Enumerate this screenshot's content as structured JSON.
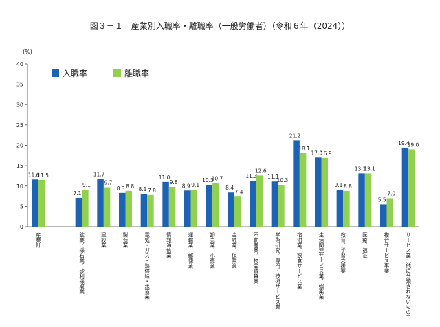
{
  "chart_data": {
    "type": "bar",
    "title": "図３－１　産業別入職率・離職率（一般労働者）（令和６年（2024））",
    "ylabel": "(%)",
    "categories": [
      "産業計",
      null,
      "鉱業，採石業，砂利採取業",
      "建設業",
      "製造業",
      "電気・ガス・熱供給・水道業",
      "情報通信業",
      "運輸業，郵便業",
      "卸売業，小売業",
      "金融業，保険業",
      "不動産業，物品賃貸業",
      "学術研究，専門・技術サービス業",
      "宿泊業，飲食サービス業",
      "生活関連サービス業，娯楽業",
      "教育，学習支援業",
      "医療，福祉",
      "複合サービス事業",
      "サービス業（他に分類されないもの）"
    ],
    "series": [
      {
        "name": "入職率",
        "color": "#1d63b5",
        "values": [
          11.6,
          null,
          7.1,
          11.7,
          8.3,
          8.1,
          11.0,
          8.9,
          10.3,
          8.4,
          11.3,
          11.1,
          21.2,
          17.0,
          9.1,
          13.1,
          5.5,
          19.4
        ],
        "value_labels": [
          "11.6",
          null,
          "7.1",
          "11.7",
          "8.3",
          "8.1",
          "11.0",
          "8.9",
          "10.3",
          "8.4",
          "11.3",
          "11.1",
          "21.2",
          "17.0",
          "9.1",
          "13.1",
          "5.5",
          "19.4"
        ]
      },
      {
        "name": "離職率",
        "color": "#92d050",
        "values": [
          11.5,
          null,
          9.1,
          9.7,
          8.8,
          7.8,
          9.8,
          9.1,
          10.7,
          7.4,
          12.6,
          10.3,
          18.1,
          16.9,
          8.8,
          13.1,
          7.0,
          19.0
        ],
        "value_labels": [
          "11.5",
          null,
          "9.1",
          "9.7",
          "8.8",
          "7.8",
          "9.8",
          "9.1",
          "10.7",
          "7.4",
          "12.6",
          "10.3",
          "18.1",
          "16.9",
          "8.8",
          "13.1",
          "7.0",
          "19.0"
        ]
      }
    ],
    "ylim": [
      0,
      40
    ],
    "yticks": [
      0,
      5,
      10,
      15,
      20,
      25,
      30,
      35,
      40
    ],
    "grid": false,
    "legend": "upper left"
  }
}
